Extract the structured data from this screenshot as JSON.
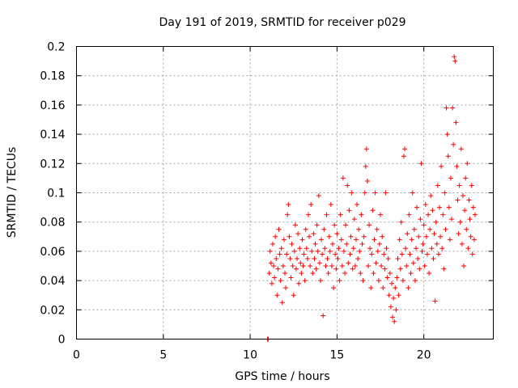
{
  "chart_data": {
    "type": "scatter",
    "title": "Day 191 of 2019, SRMTID for receiver p029",
    "xlabel": "GPS time / hours",
    "ylabel": "SRMTID / TECUs",
    "xlim": [
      0,
      24
    ],
    "ylim": [
      0,
      0.2
    ],
    "x_ticks": [
      "0",
      "5",
      "10",
      "15",
      "20"
    ],
    "y_ticks": [
      "0",
      "0.02",
      "0.04",
      "0.06",
      "0.08",
      "0.1",
      "0.12",
      "0.14",
      "0.16",
      "0.18",
      "0.2"
    ],
    "x_tick_values": [
      0,
      5,
      10,
      15,
      20
    ],
    "y_tick_values": [
      0,
      0.02,
      0.04,
      0.06,
      0.08,
      0.1,
      0.12,
      0.14,
      0.16,
      0.18,
      0.2
    ],
    "grid": true,
    "marker": "+",
    "color": "#ff0000",
    "series": [
      {
        "name": "SRMTID",
        "points": [
          [
            11.0,
            0.0
          ],
          [
            11.05,
            0.0
          ],
          [
            11.1,
            0.045
          ],
          [
            11.15,
            0.06
          ],
          [
            11.2,
            0.052
          ],
          [
            11.25,
            0.038
          ],
          [
            11.3,
            0.065
          ],
          [
            11.35,
            0.05
          ],
          [
            11.4,
            0.042
          ],
          [
            11.45,
            0.07
          ],
          [
            11.5,
            0.055
          ],
          [
            11.55,
            0.03
          ],
          [
            11.6,
            0.048
          ],
          [
            11.65,
            0.075
          ],
          [
            11.7,
            0.058
          ],
          [
            11.75,
            0.04
          ],
          [
            11.8,
            0.062
          ],
          [
            11.85,
            0.025
          ],
          [
            11.9,
            0.05
          ],
          [
            11.95,
            0.068
          ],
          [
            12.0,
            0.045
          ],
          [
            12.05,
            0.035
          ],
          [
            12.1,
            0.058
          ],
          [
            12.15,
            0.085
          ],
          [
            12.2,
            0.092
          ],
          [
            12.25,
            0.07
          ],
          [
            12.3,
            0.055
          ],
          [
            12.35,
            0.042
          ],
          [
            12.4,
            0.065
          ],
          [
            12.45,
            0.05
          ],
          [
            12.5,
            0.03
          ],
          [
            12.55,
            0.06
          ],
          [
            12.6,
            0.078
          ],
          [
            12.65,
            0.048
          ],
          [
            12.7,
            0.055
          ],
          [
            12.75,
            0.072
          ],
          [
            12.8,
            0.038
          ],
          [
            12.85,
            0.062
          ],
          [
            12.9,
            0.052
          ],
          [
            12.95,
            0.045
          ],
          [
            13.0,
            0.068
          ],
          [
            13.05,
            0.05
          ],
          [
            13.1,
            0.058
          ],
          [
            13.15,
            0.04
          ],
          [
            13.2,
            0.075
          ],
          [
            13.25,
            0.062
          ],
          [
            13.3,
            0.055
          ],
          [
            13.35,
            0.085
          ],
          [
            13.4,
            0.07
          ],
          [
            13.45,
            0.05
          ],
          [
            13.5,
            0.092
          ],
          [
            13.55,
            0.06
          ],
          [
            13.6,
            0.045
          ],
          [
            13.65,
            0.072
          ],
          [
            13.7,
            0.055
          ],
          [
            13.75,
            0.065
          ],
          [
            13.8,
            0.048
          ],
          [
            13.85,
            0.078
          ],
          [
            13.9,
            0.06
          ],
          [
            13.95,
            0.098
          ],
          [
            14.0,
            0.052
          ],
          [
            14.05,
            0.04
          ],
          [
            14.1,
            0.068
          ],
          [
            14.15,
            0.058
          ],
          [
            14.2,
            0.016
          ],
          [
            14.25,
            0.075
          ],
          [
            14.3,
            0.062
          ],
          [
            14.35,
            0.05
          ],
          [
            14.4,
            0.085
          ],
          [
            14.45,
            0.055
          ],
          [
            14.5,
            0.045
          ],
          [
            14.55,
            0.07
          ],
          [
            14.6,
            0.06
          ],
          [
            14.65,
            0.092
          ],
          [
            14.7,
            0.05
          ],
          [
            14.75,
            0.065
          ],
          [
            14.8,
            0.035
          ],
          [
            14.85,
            0.078
          ],
          [
            14.9,
            0.058
          ],
          [
            14.95,
            0.048
          ],
          [
            15.0,
            0.072
          ],
          [
            15.05,
            0.055
          ],
          [
            15.1,
            0.062
          ],
          [
            15.15,
            0.04
          ],
          [
            15.2,
            0.085
          ],
          [
            15.25,
            0.068
          ],
          [
            15.3,
            0.05
          ],
          [
            15.35,
            0.11
          ],
          [
            15.4,
            0.06
          ],
          [
            15.45,
            0.045
          ],
          [
            15.5,
            0.078
          ],
          [
            15.55,
            0.065
          ],
          [
            15.6,
            0.105
          ],
          [
            15.65,
            0.052
          ],
          [
            15.7,
            0.088
          ],
          [
            15.75,
            0.058
          ],
          [
            15.8,
            0.07
          ],
          [
            15.85,
            0.1
          ],
          [
            15.9,
            0.048
          ],
          [
            15.95,
            0.062
          ],
          [
            16.0,
            0.082
          ],
          [
            16.05,
            0.05
          ],
          [
            16.1,
            0.068
          ],
          [
            16.15,
            0.092
          ],
          [
            16.2,
            0.055
          ],
          [
            16.25,
            0.075
          ],
          [
            16.3,
            0.06
          ],
          [
            16.35,
            0.045
          ],
          [
            16.4,
            0.085
          ],
          [
            16.45,
            0.065
          ],
          [
            16.5,
            0.04
          ],
          [
            16.55,
            0.07
          ],
          [
            16.6,
            0.1
          ],
          [
            16.65,
            0.118
          ],
          [
            16.7,
            0.13
          ],
          [
            16.75,
            0.108
          ],
          [
            16.8,
            0.05
          ],
          [
            16.85,
            0.078
          ],
          [
            16.9,
            0.062
          ],
          [
            16.95,
            0.035
          ],
          [
            17.0,
            0.058
          ],
          [
            17.05,
            0.088
          ],
          [
            17.1,
            0.045
          ],
          [
            17.15,
            0.068
          ],
          [
            17.2,
            0.1
          ],
          [
            17.25,
            0.052
          ],
          [
            17.3,
            0.075
          ],
          [
            17.35,
            0.06
          ],
          [
            17.4,
            0.04
          ],
          [
            17.45,
            0.065
          ],
          [
            17.5,
            0.085
          ],
          [
            17.55,
            0.05
          ],
          [
            17.6,
            0.07
          ],
          [
            17.65,
            0.035
          ],
          [
            17.7,
            0.058
          ],
          [
            17.75,
            0.048
          ],
          [
            17.8,
            0.1
          ],
          [
            17.85,
            0.062
          ],
          [
            17.9,
            0.042
          ],
          [
            17.95,
            0.055
          ],
          [
            18.0,
            0.03
          ],
          [
            18.05,
            0.045
          ],
          [
            18.1,
            0.022
          ],
          [
            18.15,
            0.038
          ],
          [
            18.2,
            0.015
          ],
          [
            18.25,
            0.028
          ],
          [
            18.3,
            0.012
          ],
          [
            18.35,
            0.035
          ],
          [
            18.4,
            0.02
          ],
          [
            18.45,
            0.042
          ],
          [
            18.5,
            0.055
          ],
          [
            18.55,
            0.03
          ],
          [
            18.6,
            0.068
          ],
          [
            18.65,
            0.048
          ],
          [
            18.7,
            0.08
          ],
          [
            18.75,
            0.058
          ],
          [
            18.8,
            0.04
          ],
          [
            18.85,
            0.125
          ],
          [
            18.9,
            0.13
          ],
          [
            18.95,
            0.062
          ],
          [
            19.0,
            0.05
          ],
          [
            19.05,
            0.072
          ],
          [
            19.1,
            0.035
          ],
          [
            19.15,
            0.085
          ],
          [
            19.2,
            0.058
          ],
          [
            19.25,
            0.045
          ],
          [
            19.3,
            0.068
          ],
          [
            19.35,
            0.1
          ],
          [
            19.4,
            0.052
          ],
          [
            19.45,
            0.075
          ],
          [
            19.5,
            0.04
          ],
          [
            19.55,
            0.062
          ],
          [
            19.6,
            0.09
          ],
          [
            19.65,
            0.055
          ],
          [
            19.7,
            0.07
          ],
          [
            19.75,
            0.048
          ],
          [
            19.8,
            0.082
          ],
          [
            19.85,
            0.12
          ],
          [
            19.9,
            0.06
          ],
          [
            19.95,
            0.065
          ],
          [
            20.0,
            0.078
          ],
          [
            20.05,
            0.05
          ],
          [
            20.1,
            0.092
          ],
          [
            20.15,
            0.07
          ],
          [
            20.2,
            0.058
          ],
          [
            20.25,
            0.085
          ],
          [
            20.3,
            0.045
          ],
          [
            20.35,
            0.075
          ],
          [
            20.4,
            0.098
          ],
          [
            20.45,
            0.062
          ],
          [
            20.5,
            0.088
          ],
          [
            20.55,
            0.055
          ],
          [
            20.6,
            0.072
          ],
          [
            20.65,
            0.026
          ],
          [
            20.7,
            0.08
          ],
          [
            20.75,
            0.065
          ],
          [
            20.8,
            0.105
          ],
          [
            20.85,
            0.058
          ],
          [
            20.9,
            0.09
          ],
          [
            20.95,
            0.07
          ],
          [
            21.0,
            0.118
          ],
          [
            21.05,
            0.062
          ],
          [
            21.1,
            0.085
          ],
          [
            21.15,
            0.048
          ],
          [
            21.2,
            0.1
          ],
          [
            21.25,
            0.075
          ],
          [
            21.3,
            0.158
          ],
          [
            21.35,
            0.14
          ],
          [
            21.4,
            0.125
          ],
          [
            21.45,
            0.09
          ],
          [
            21.5,
            0.068
          ],
          [
            21.55,
            0.11
          ],
          [
            21.6,
            0.082
          ],
          [
            21.65,
            0.158
          ],
          [
            21.7,
            0.133
          ],
          [
            21.75,
            0.193
          ],
          [
            21.8,
            0.19
          ],
          [
            21.85,
            0.148
          ],
          [
            21.9,
            0.118
          ],
          [
            21.95,
            0.095
          ],
          [
            22.0,
            0.072
          ],
          [
            22.05,
            0.105
          ],
          [
            22.1,
            0.08
          ],
          [
            22.15,
            0.13
          ],
          [
            22.2,
            0.065
          ],
          [
            22.25,
            0.098
          ],
          [
            22.3,
            0.05
          ],
          [
            22.35,
            0.088
          ],
          [
            22.4,
            0.11
          ],
          [
            22.45,
            0.075
          ],
          [
            22.5,
            0.12
          ],
          [
            22.55,
            0.062
          ],
          [
            22.6,
            0.095
          ],
          [
            22.65,
            0.082
          ],
          [
            22.7,
            0.07
          ],
          [
            22.75,
            0.105
          ],
          [
            22.8,
            0.058
          ],
          [
            22.85,
            0.09
          ],
          [
            22.9,
            0.068
          ],
          [
            22.95,
            0.085
          ]
        ]
      }
    ]
  }
}
